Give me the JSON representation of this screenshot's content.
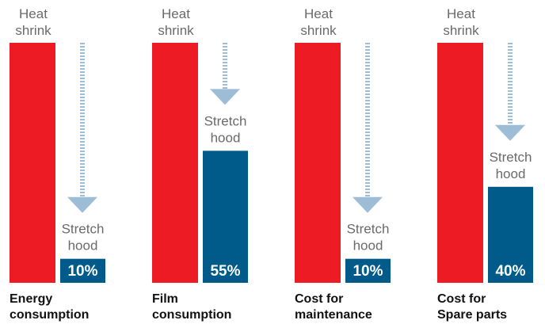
{
  "chart_data": {
    "type": "bar",
    "title": "",
    "xlabel": "",
    "ylabel": "",
    "ylim": [
      0,
      100
    ],
    "categories": [
      [
        "Energy",
        "consumption"
      ],
      [
        "Film",
        "consumption"
      ],
      [
        "Cost for",
        "maintenance"
      ],
      [
        "Cost for",
        "Spare parts"
      ]
    ],
    "series": [
      {
        "name": "Heat shrink",
        "name_lines": [
          "Heat",
          "shrink"
        ],
        "values": [
          100,
          100,
          100,
          100
        ]
      },
      {
        "name": "Stretch hood",
        "name_lines": [
          "Stretch",
          "hood"
        ],
        "values": [
          10,
          55,
          10,
          40
        ],
        "value_labels": [
          "10%",
          "55%",
          "10%",
          "40%"
        ]
      }
    ],
    "colors": {
      "heat_shrink": "#ed1c24",
      "stretch_hood": "#005b8a",
      "arrow": "#9dbcd6",
      "label_text": "#6a6a6a",
      "category_text": "#111111"
    }
  }
}
